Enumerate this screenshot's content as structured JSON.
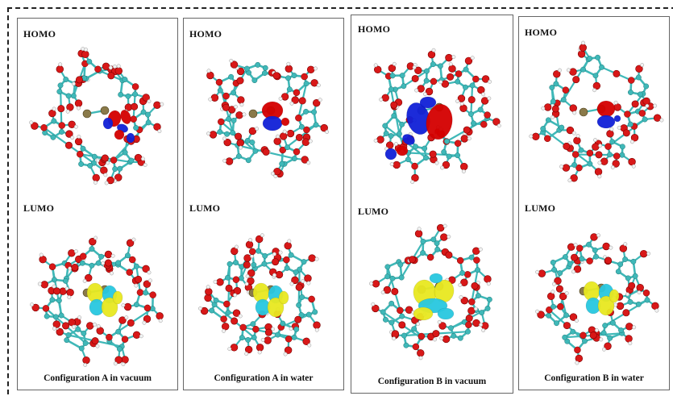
{
  "panels": [
    {
      "homo_label": "HOMO",
      "lumo_label": "LUMO",
      "caption": "Configuration A in vacuum"
    },
    {
      "homo_label": "HOMO",
      "lumo_label": "LUMO",
      "caption": "Configuration A in water"
    },
    {
      "homo_label": "HOMO",
      "lumo_label": "LUMO",
      "caption": "Configuration B in vacuum"
    },
    {
      "homo_label": "HOMO",
      "lumo_label": "LUMO",
      "caption": "Configuration B in water"
    }
  ],
  "colors": {
    "carbon": "#3fb8b8",
    "oxygen": "#d81818",
    "hydrogen": "#f2f2f2",
    "bond": "#3fb8b8",
    "center": "#8a7a4a",
    "homo_positive": "#d40000",
    "homo_negative": "#1020d8",
    "lumo_positive": "#e8e820",
    "lumo_negative": "#28c8e0"
  }
}
